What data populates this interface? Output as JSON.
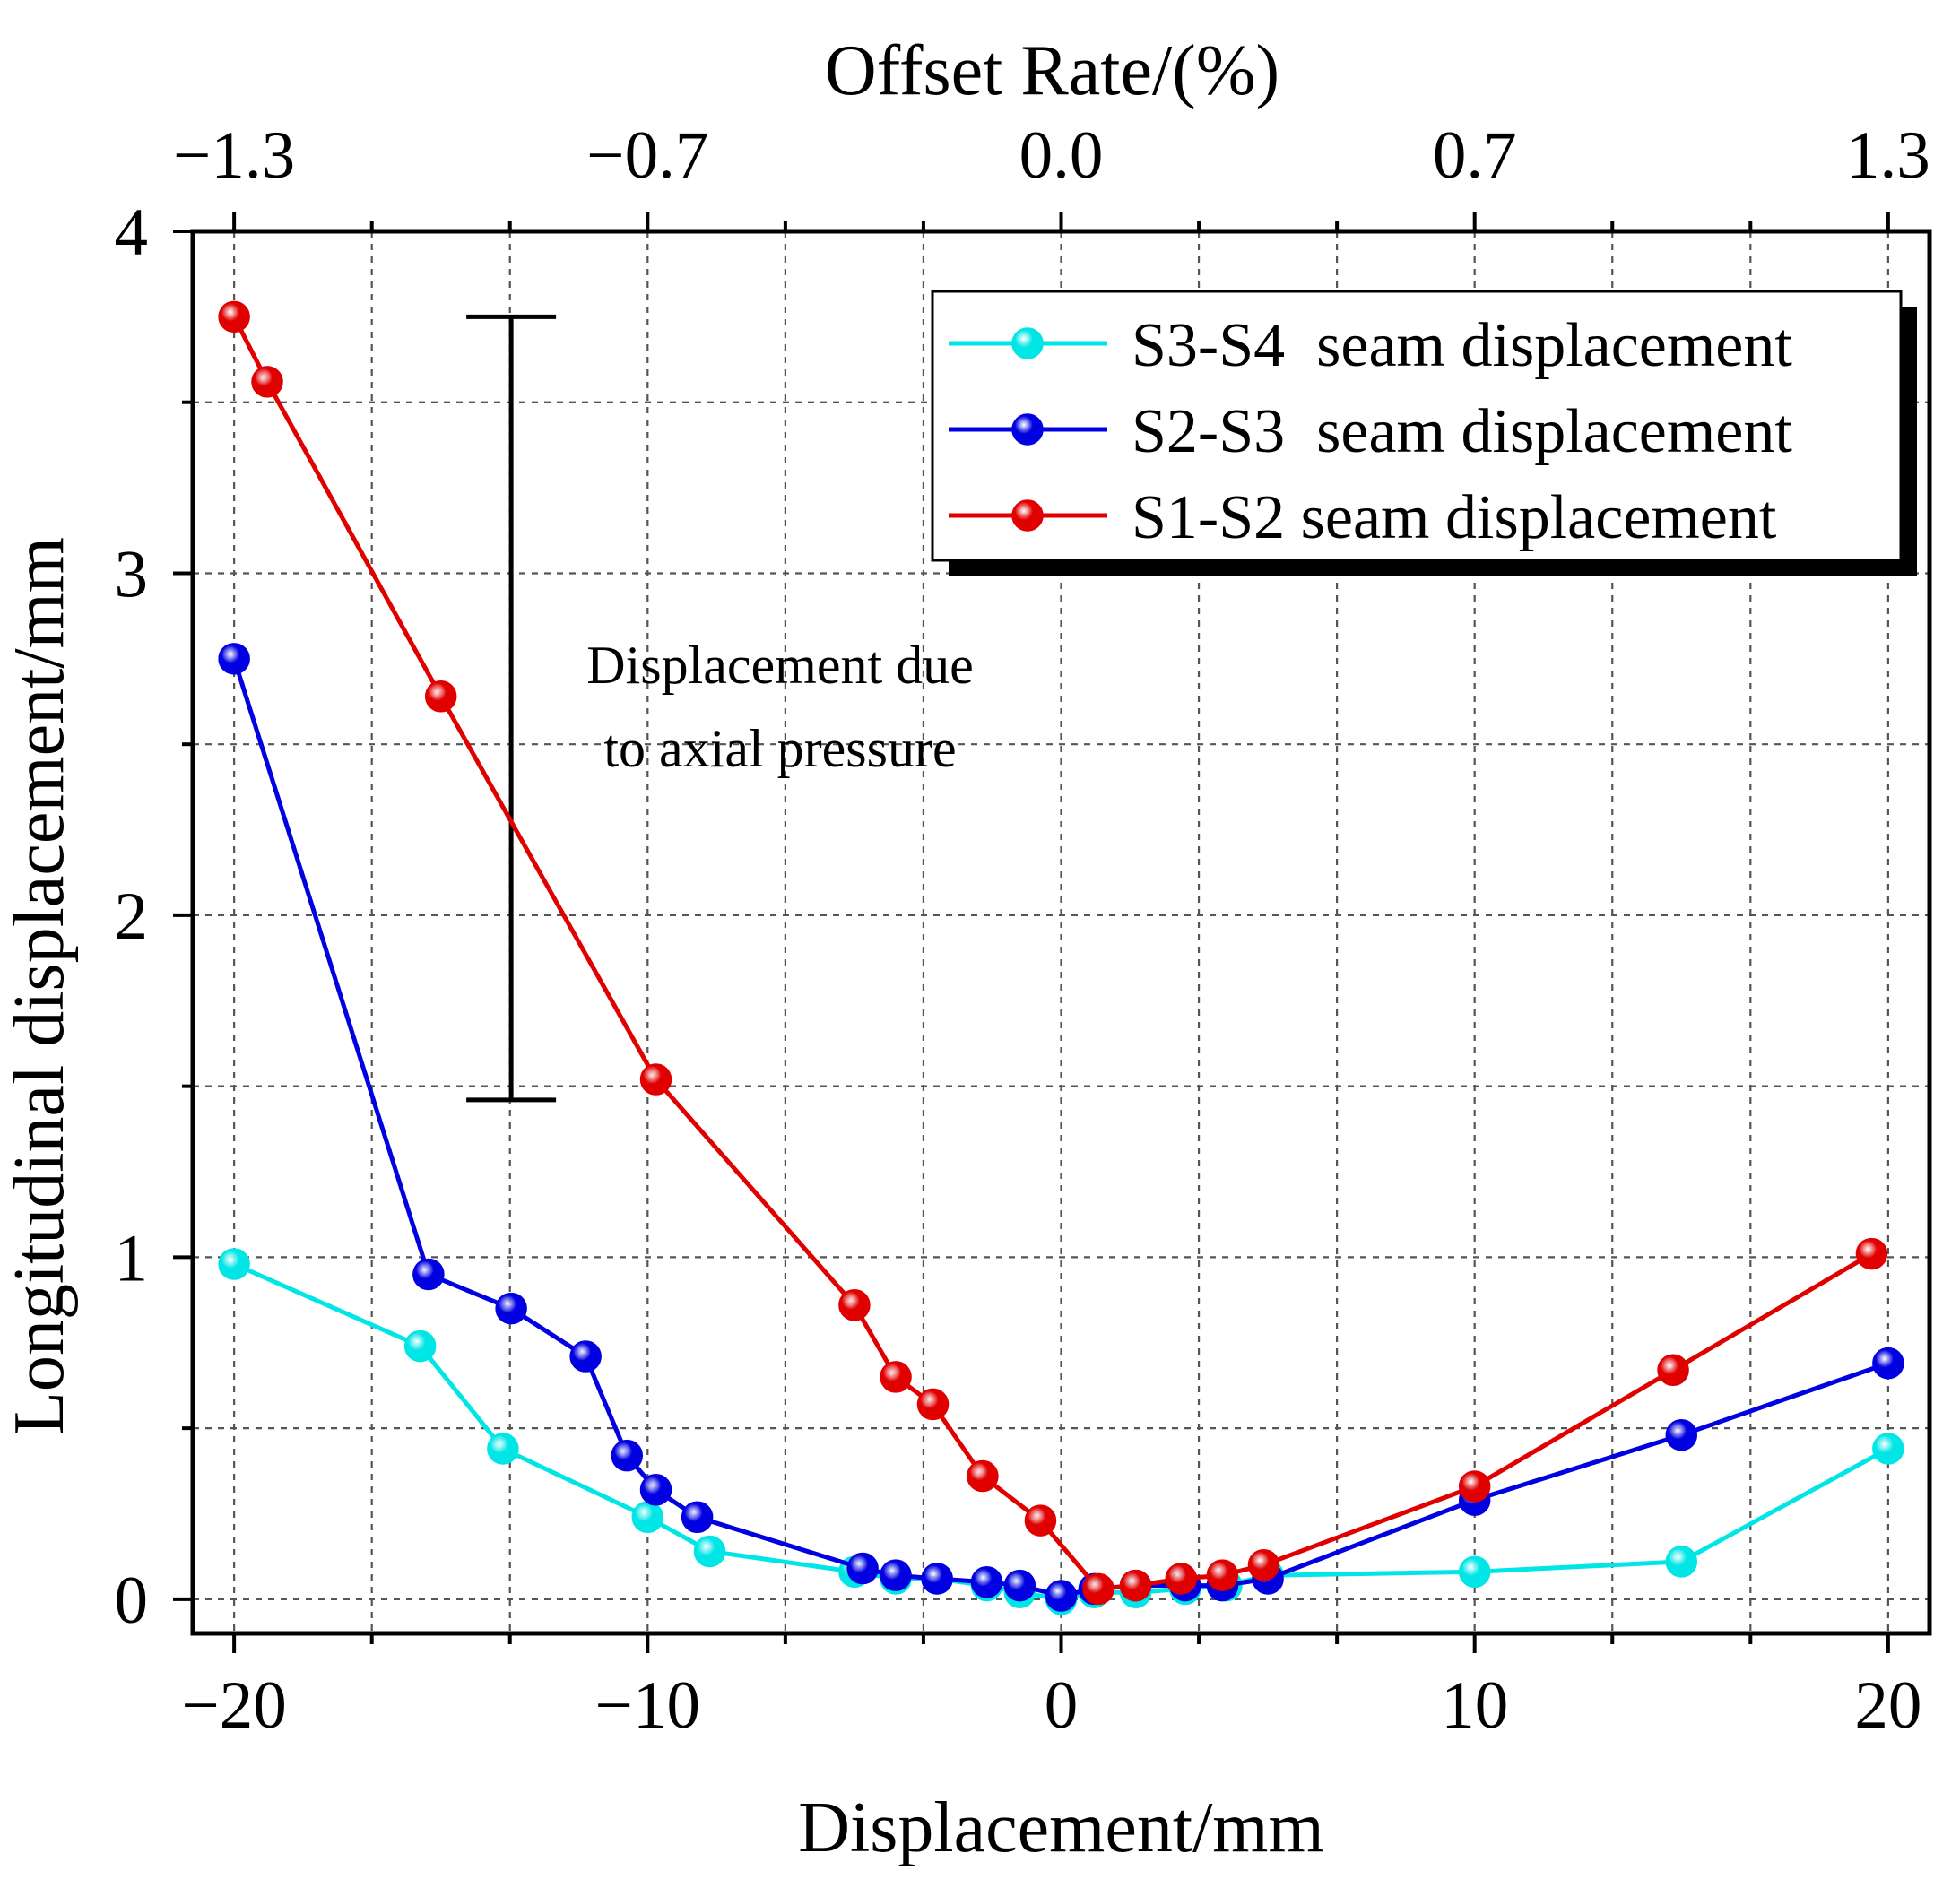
{
  "chart_data": {
    "type": "line",
    "title": "",
    "xlabel": "Displacement/mm",
    "ylabel": "Longitudinal displacement/mm",
    "x2label": "Offset Rate/(%)",
    "xlim": [
      -21,
      21
    ],
    "ylim": [
      -0.1,
      4
    ],
    "grid": true,
    "x_ticks": [
      {
        "value": -20,
        "label": "−20"
      },
      {
        "value": -10,
        "label": "−10"
      },
      {
        "value": 0,
        "label": "0"
      },
      {
        "value": 10,
        "label": "10"
      },
      {
        "value": 20,
        "label": "20"
      }
    ],
    "x_minor_ticks": [
      -16.67,
      -13.33,
      -6.67,
      -3.33,
      3.33,
      6.67,
      13.33,
      16.67
    ],
    "x2_ticks": [
      {
        "value": -20,
        "label": "−1.3"
      },
      {
        "value": -10,
        "label": "−0.7"
      },
      {
        "value": 0,
        "label": "0.0"
      },
      {
        "value": 10,
        "label": "0.7"
      },
      {
        "value": 20,
        "label": "1.3"
      }
    ],
    "y_ticks": [
      {
        "value": 0,
        "label": "0"
      },
      {
        "value": 1,
        "label": "1"
      },
      {
        "value": 2,
        "label": "2"
      },
      {
        "value": 3,
        "label": "3"
      },
      {
        "value": 4,
        "label": "4"
      }
    ],
    "y_minor_ticks": [
      0.5,
      1.5,
      2.5,
      3.5
    ],
    "legend_position": "top-right",
    "series": [
      {
        "name": "S3-S4  seam displacement",
        "color": "#00e5e5",
        "x": [
          -20,
          -15.5,
          -13.5,
          -10,
          -8.5,
          -5,
          -4,
          -3,
          -1.8,
          -1,
          0,
          0.8,
          1.8,
          3,
          4,
          5,
          10,
          15,
          20
        ],
        "y": [
          0.98,
          0.74,
          0.44,
          0.24,
          0.14,
          0.08,
          0.06,
          0.06,
          0.04,
          0.02,
          0.0,
          0.02,
          0.02,
          0.03,
          0.04,
          0.07,
          0.08,
          0.11,
          0.44
        ]
      },
      {
        "name": "S2-S3  seam displacement",
        "color": "#0000e0",
        "x": [
          -20,
          -15.3,
          -13.3,
          -11.5,
          -10.5,
          -9.8,
          -8.8,
          -4.8,
          -4,
          -3,
          -1.8,
          -1,
          0,
          0.8,
          1.8,
          3,
          3.9,
          5,
          10,
          15,
          20
        ],
        "y": [
          2.75,
          0.95,
          0.85,
          0.71,
          0.42,
          0.32,
          0.24,
          0.09,
          0.07,
          0.06,
          0.05,
          0.04,
          0.01,
          0.03,
          0.04,
          0.04,
          0.04,
          0.06,
          0.29,
          0.48,
          0.69
        ]
      },
      {
        "name": "S1-S2 seam displacement",
        "color": "#e00000",
        "x": [
          -20,
          -19.2,
          -15,
          -9.8,
          -5,
          -4,
          -3.1,
          -1.9,
          -0.5,
          0.9,
          1.8,
          2.9,
          3.9,
          4.9,
          10,
          14.8,
          19.6
        ],
        "y": [
          3.75,
          3.56,
          2.64,
          1.52,
          0.86,
          0.65,
          0.57,
          0.36,
          0.23,
          0.03,
          0.04,
          0.06,
          0.07,
          0.1,
          0.33,
          0.67,
          1.01
        ]
      }
    ],
    "annotation": {
      "lines": [
        "Displacement due",
        "to axial pressure"
      ],
      "bar_x": -13.3,
      "bar_y_top": 3.75,
      "bar_y_bottom": 1.46
    }
  }
}
